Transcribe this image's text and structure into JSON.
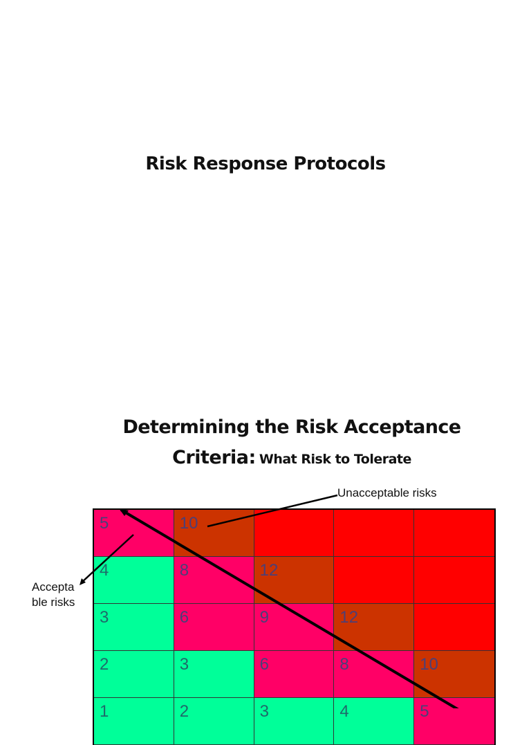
{
  "slide1": {
    "title": "Risk Response Protocols"
  },
  "slide2": {
    "title": "Determining the Risk Acceptance",
    "subtitle_big": "Criteria:",
    "subtitle_small": "What Risk to Tolerate",
    "annotations": {
      "unacceptable": "Unacceptable risks",
      "acceptable_line1": "Accepta",
      "acceptable_line2": "ble risks"
    },
    "colors": {
      "green": "#00ff99",
      "pink": "#ff0066",
      "brown": "#cc3300",
      "red": "#ff0000"
    },
    "matrix": [
      [
        {
          "v": "5",
          "c": "pink"
        },
        {
          "v": "10",
          "c": "brown"
        },
        {
          "v": "",
          "c": "red"
        },
        {
          "v": "",
          "c": "red"
        },
        {
          "v": "",
          "c": "red"
        }
      ],
      [
        {
          "v": "4",
          "c": "green"
        },
        {
          "v": "8",
          "c": "pink"
        },
        {
          "v": "12",
          "c": "brown"
        },
        {
          "v": "",
          "c": "red"
        },
        {
          "v": "",
          "c": "red"
        }
      ],
      [
        {
          "v": "3",
          "c": "green"
        },
        {
          "v": "6",
          "c": "pink"
        },
        {
          "v": "9",
          "c": "pink"
        },
        {
          "v": "12",
          "c": "brown"
        },
        {
          "v": "",
          "c": "red"
        }
      ],
      [
        {
          "v": "2",
          "c": "green"
        },
        {
          "v": "3",
          "c": "green"
        },
        {
          "v": "6",
          "c": "pink"
        },
        {
          "v": "8",
          "c": "pink"
        },
        {
          "v": "10",
          "c": "brown"
        }
      ],
      [
        {
          "v": "1",
          "c": "green"
        },
        {
          "v": "2",
          "c": "green"
        },
        {
          "v": "3",
          "c": "green"
        },
        {
          "v": "4",
          "c": "green"
        },
        {
          "v": "5",
          "c": "pink"
        }
      ]
    ]
  }
}
